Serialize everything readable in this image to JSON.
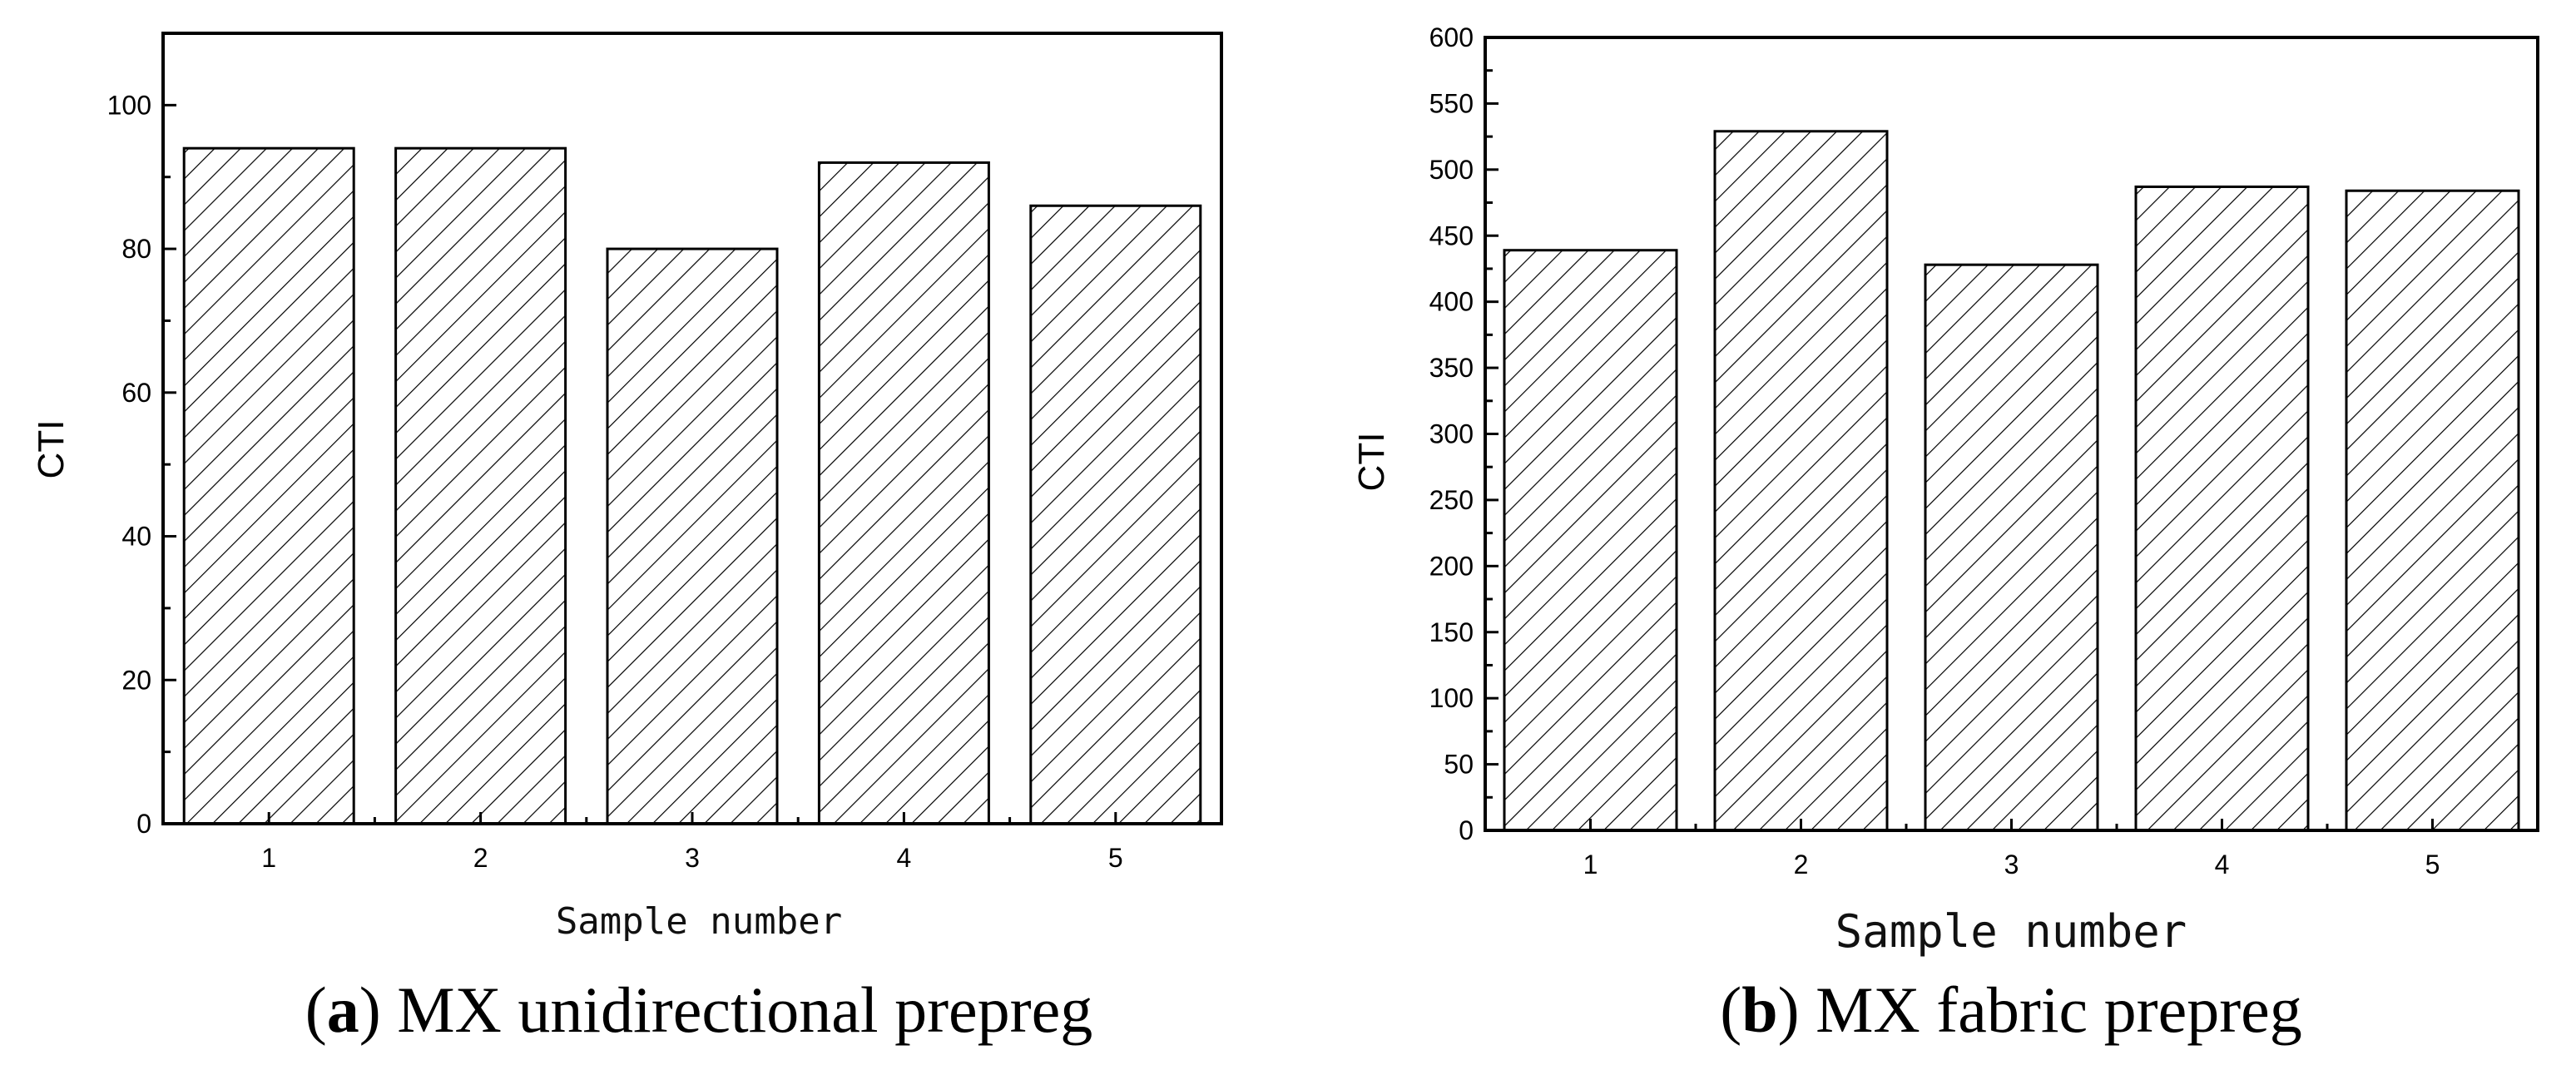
{
  "chart_data": [
    {
      "type": "bar",
      "categories": [
        "1",
        "2",
        "3",
        "4",
        "5"
      ],
      "values": [
        94,
        94,
        80,
        92,
        86
      ],
      "ylabel": "CTI",
      "xlabel": "Sample number",
      "ylim": [
        0,
        110
      ],
      "yticks": [
        0,
        20,
        40,
        60,
        80,
        100
      ],
      "caption_letter": "a",
      "caption_text": "MX unidirectional prepreg",
      "bar_fill": "diagonal-hatch",
      "grid": false
    },
    {
      "type": "bar",
      "categories": [
        "1",
        "2",
        "3",
        "4",
        "5"
      ],
      "values": [
        439,
        529,
        428,
        487,
        484
      ],
      "ylabel": "CTI",
      "xlabel": "Sample number",
      "ylim": [
        0,
        600
      ],
      "yticks": [
        0,
        50,
        100,
        150,
        200,
        250,
        300,
        350,
        400,
        450,
        500,
        550,
        600
      ],
      "caption_letter": "b",
      "caption_text": "MX fabric prepreg",
      "bar_fill": "diagonal-hatch",
      "grid": false
    }
  ],
  "colors": {
    "axis": "#000000",
    "bar_stroke": "#000000",
    "hatch": "#000000",
    "background": "#ffffff"
  }
}
